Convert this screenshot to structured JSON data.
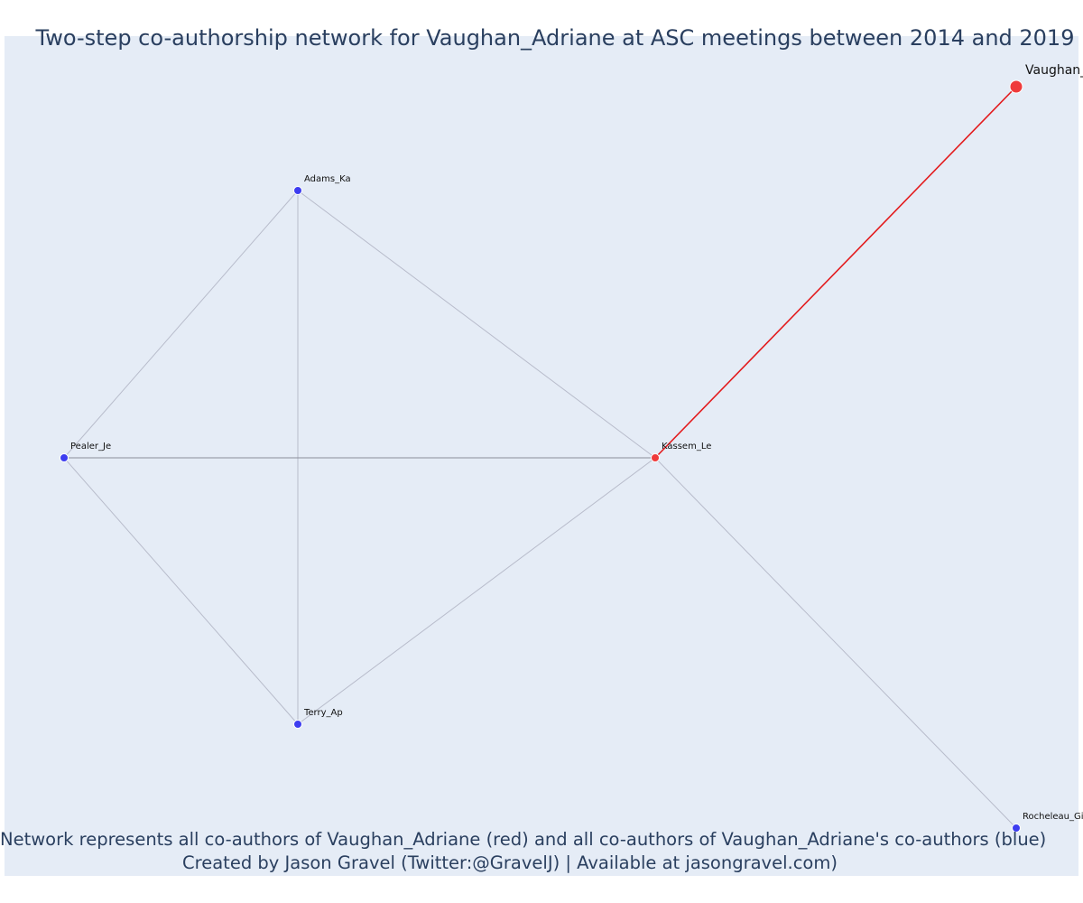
{
  "title": "Two-step co-authorship network for Vaughan_Adriane at ASC meetings between 2014 and 2019",
  "footer": {
    "line1": "Network represents all co-authors of Vaughan_Adriane (red) and all co-authors of Vaughan_Adriane's co-authors (blue)",
    "line2": "Created by Jason Gravel (Twitter:@GravelJ) | Available at jasongravel.com)"
  },
  "colors": {
    "plot_background": "#e5ecf6",
    "focal_node": "#ef3b3b",
    "coauthor_node": "#3d3df0",
    "focal_edge": "#e31a1c",
    "edge": "#b8bccb",
    "strong_edge": "#8b8e99",
    "title_text": "#2a3f5f"
  },
  "nodes": [
    {
      "id": "Vaughan_Adriane",
      "label": "Vaughan_Adriane",
      "group": "focal",
      "size": "large"
    },
    {
      "id": "Kassem_Le",
      "label": "Kassem_Le",
      "group": "focal",
      "size": "small"
    },
    {
      "id": "Adams_Ka",
      "label": "Adams_Ka",
      "group": "coauthor",
      "size": "small"
    },
    {
      "id": "Pealer_Je",
      "label": "Pealer_Je",
      "group": "coauthor",
      "size": "small"
    },
    {
      "id": "Terry_Ap",
      "label": "Terry_Ap",
      "group": "coauthor",
      "size": "small"
    },
    {
      "id": "Rocheleau_Gi",
      "label": "Rocheleau_Gi",
      "group": "coauthor",
      "size": "small"
    }
  ],
  "edges": [
    {
      "source": "Vaughan_Adriane",
      "target": "Kassem_Le",
      "type": "focal"
    },
    {
      "source": "Adams_Ka",
      "target": "Pealer_Je",
      "type": "normal"
    },
    {
      "source": "Adams_Ka",
      "target": "Terry_Ap",
      "type": "normal"
    },
    {
      "source": "Adams_Ka",
      "target": "Kassem_Le",
      "type": "normal"
    },
    {
      "source": "Pealer_Je",
      "target": "Kassem_Le",
      "type": "strong"
    },
    {
      "source": "Pealer_Je",
      "target": "Terry_Ap",
      "type": "normal"
    },
    {
      "source": "Terry_Ap",
      "target": "Kassem_Le",
      "type": "normal"
    },
    {
      "source": "Kassem_Le",
      "target": "Rocheleau_Gi",
      "type": "normal"
    }
  ]
}
